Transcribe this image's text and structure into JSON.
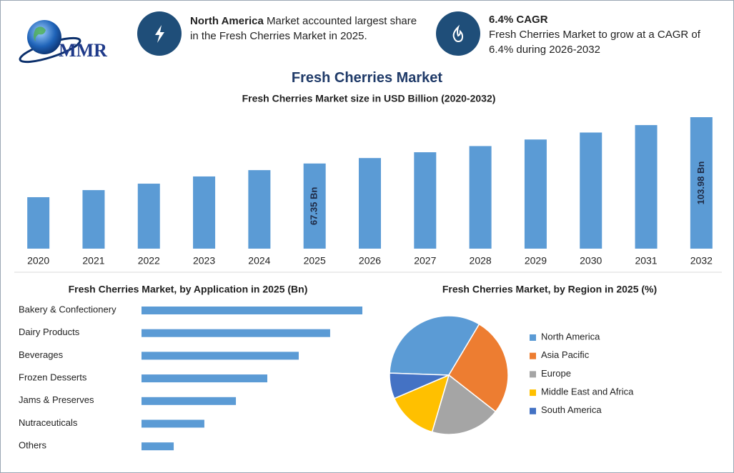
{
  "header": {
    "logo": "MMR",
    "highlight1": {
      "bold": "North America",
      "text": "Market accounted largest share in the Fresh Cherries Market in 2025."
    },
    "highlight2": {
      "title": "6.4% CAGR",
      "text": "Fresh Cherries Market to grow at a CAGR of 6.4% during 2026-2032"
    },
    "title": "Fresh Cherries Market"
  },
  "chart_data": [
    {
      "type": "bar",
      "orientation": "vertical",
      "title": "Fresh Cherries Market size in USD Billion (2020-2032)",
      "categories": [
        "2020",
        "2021",
        "2022",
        "2023",
        "2024",
        "2025",
        "2026",
        "2027",
        "2028",
        "2029",
        "2030",
        "2031",
        "2032"
      ],
      "values": [
        40.7,
        46.3,
        51.4,
        57.1,
        62.1,
        67.35,
        71.66,
        76.25,
        81.13,
        86.32,
        91.84,
        97.72,
        103.98
      ],
      "value_labels": [
        null,
        null,
        null,
        null,
        null,
        "67.35 Bn",
        null,
        null,
        null,
        null,
        null,
        null,
        "103.98 Bn"
      ],
      "color": "#5b9bd5"
    },
    {
      "type": "bar",
      "orientation": "horizontal",
      "title": "Fresh Cherries Market, by Application in 2025 (Bn)",
      "categories": [
        "Bakery & Confectionery",
        "Dairy Products",
        "Beverages",
        "Frozen Desserts",
        "Jams & Preserves",
        "Nutraceuticals",
        "Others"
      ],
      "values": [
        16.87,
        14.41,
        12.01,
        9.61,
        7.21,
        4.8,
        2.46
      ],
      "color": "#5b9bd5"
    },
    {
      "type": "pie",
      "title": "Fresh Cherries Market, by Region in 2025 (%)",
      "categories": [
        "North America",
        "Asia Pacific",
        "Europe",
        "Middle East and Africa",
        "South America"
      ],
      "values": [
        33,
        27,
        19,
        14,
        7
      ],
      "colors": [
        "#5b9bd5",
        "#ed7d31",
        "#a5a5a5",
        "#ffc000",
        "#4472c4"
      ],
      "legend": "right"
    }
  ]
}
